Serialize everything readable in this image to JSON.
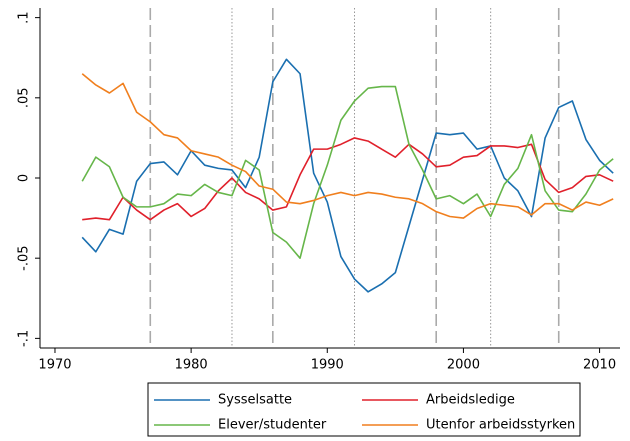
{
  "chart_data": {
    "type": "line",
    "x": [
      1972,
      1973,
      1974,
      1975,
      1976,
      1977,
      1978,
      1979,
      1980,
      1981,
      1982,
      1983,
      1984,
      1985,
      1986,
      1987,
      1988,
      1989,
      1990,
      1991,
      1992,
      1993,
      1994,
      1995,
      1996,
      1997,
      1998,
      1999,
      2000,
      2001,
      2002,
      2003,
      2004,
      2005,
      2006,
      2007,
      2008,
      2009,
      2010,
      2011
    ],
    "series": [
      {
        "name": "Sysselsatte",
        "color": "#1a6fb0",
        "values": [
          -0.037,
          -0.046,
          -0.032,
          -0.035,
          -0.002,
          0.009,
          0.01,
          0.002,
          0.017,
          0.008,
          0.006,
          0.005,
          -0.006,
          0.013,
          0.06,
          0.074,
          0.065,
          0.003,
          -0.015,
          -0.049,
          -0.063,
          -0.071,
          -0.066,
          -0.059,
          -0.03,
          -0.001,
          0.028,
          0.027,
          0.028,
          0.018,
          0.02,
          0.0,
          -0.008,
          -0.024,
          0.025,
          0.044,
          0.048,
          0.024,
          0.011,
          0.003
        ]
      },
      {
        "name": "Arbeidsledige",
        "color": "#e0202b",
        "values": [
          -0.026,
          -0.025,
          -0.026,
          -0.012,
          -0.02,
          -0.026,
          -0.02,
          -0.016,
          -0.024,
          -0.019,
          -0.008,
          0.0,
          -0.009,
          -0.013,
          -0.02,
          -0.018,
          0.002,
          0.018,
          0.018,
          0.021,
          0.025,
          0.023,
          0.018,
          0.013,
          0.021,
          0.015,
          0.007,
          0.008,
          0.013,
          0.014,
          0.02,
          0.02,
          0.019,
          0.021,
          -0.001,
          -0.009,
          -0.006,
          0.001,
          0.002,
          -0.002
        ]
      },
      {
        "name": "Elever/studenter",
        "color": "#66b64a",
        "values": [
          -0.002,
          0.013,
          0.007,
          -0.012,
          -0.018,
          -0.018,
          -0.016,
          -0.01,
          -0.011,
          -0.004,
          -0.009,
          -0.011,
          0.011,
          0.005,
          -0.034,
          -0.04,
          -0.05,
          -0.016,
          0.008,
          0.036,
          0.048,
          0.056,
          0.057,
          0.057,
          0.021,
          0.005,
          -0.013,
          -0.011,
          -0.016,
          -0.01,
          -0.024,
          -0.004,
          0.006,
          0.027,
          -0.008,
          -0.02,
          -0.021,
          -0.01,
          0.005,
          0.012
        ]
      },
      {
        "name": "Utenfor arbeidsstyrken",
        "color": "#f07f1e",
        "values": [
          0.065,
          0.058,
          0.053,
          0.059,
          0.041,
          0.035,
          0.027,
          0.025,
          0.017,
          0.015,
          0.013,
          0.008,
          0.004,
          -0.005,
          -0.007,
          -0.015,
          -0.016,
          -0.014,
          -0.011,
          -0.009,
          -0.011,
          -0.009,
          -0.01,
          -0.012,
          -0.013,
          -0.016,
          -0.021,
          -0.024,
          -0.025,
          -0.019,
          -0.016,
          -0.017,
          -0.018,
          -0.023,
          -0.016,
          -0.016,
          -0.02,
          -0.015,
          -0.017,
          -0.013
        ]
      }
    ],
    "xlim": [
      1968.9,
      2011.5
    ],
    "xticks": [
      1970,
      1980,
      1990,
      2000,
      2010
    ],
    "ylim": [
      -0.106,
      0.106
    ],
    "yticks": [
      {
        "value": -0.1,
        "label": "-.1"
      },
      {
        "value": -0.05,
        "label": "-.05"
      },
      0,
      {
        "value": 0.05,
        "label": ".05"
      },
      {
        "value": 0.1,
        "label": ".1"
      }
    ],
    "reference_lines": [
      {
        "x": 1977,
        "style": "dashed"
      },
      {
        "x": 1983,
        "style": "dotted"
      },
      {
        "x": 1986,
        "style": "dashed"
      },
      {
        "x": 1992,
        "style": "dotted"
      },
      {
        "x": 1998,
        "style": "dashed"
      },
      {
        "x": 2002,
        "style": "dotted"
      },
      {
        "x": 2007,
        "style": "dashed"
      }
    ]
  }
}
